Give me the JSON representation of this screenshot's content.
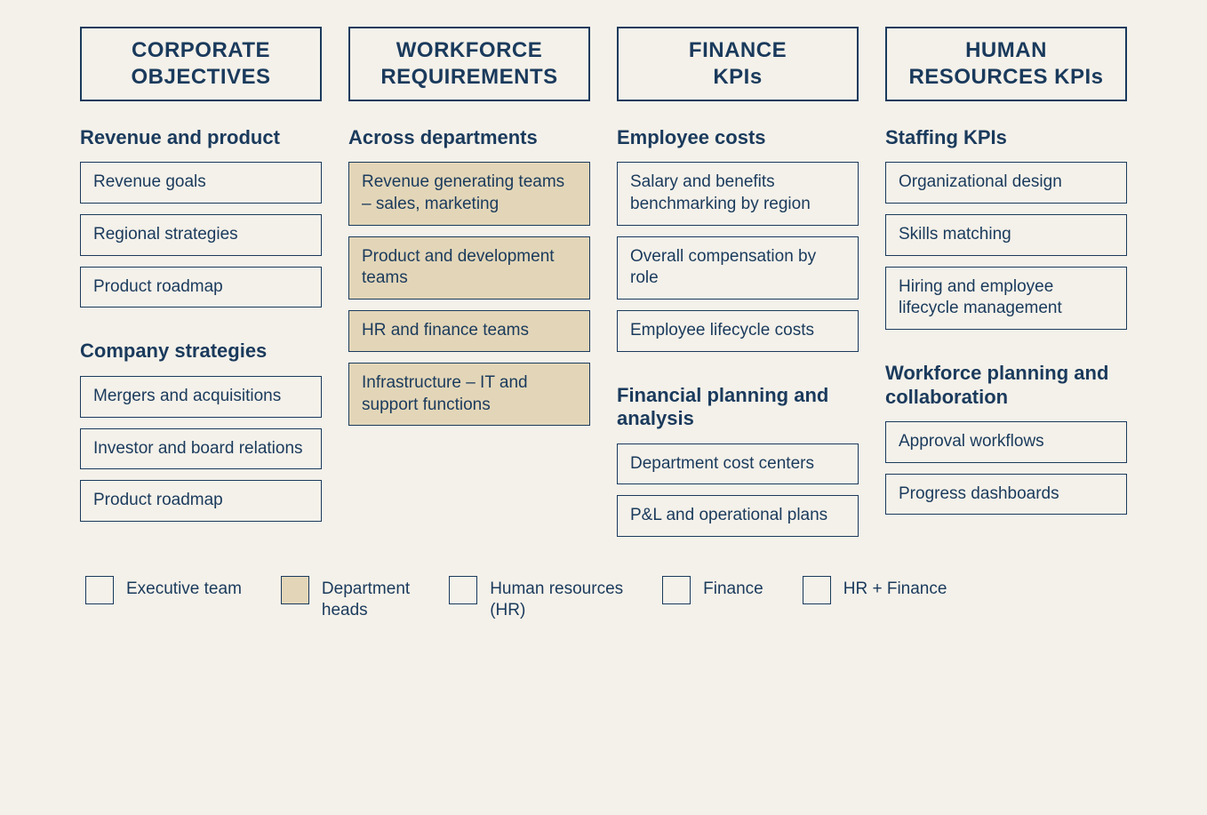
{
  "colors": {
    "background": "#f4f1ea",
    "text": "#1a3a5c",
    "border": "#1a3a5c",
    "fill_highlight": "#e3d6b8"
  },
  "columns": [
    {
      "header": "CORPORATE\nOBJECTIVES",
      "sections": [
        {
          "title": "Revenue and product",
          "items": [
            {
              "label": "Revenue goals",
              "filled": false
            },
            {
              "label": "Regional strategies",
              "filled": false
            },
            {
              "label": "Product roadmap",
              "filled": false
            }
          ]
        },
        {
          "title": "Company strategies",
          "items": [
            {
              "label": "Mergers and acquisitions",
              "filled": false
            },
            {
              "label": "Investor and board relations",
              "filled": false
            },
            {
              "label": "Product roadmap",
              "filled": false
            }
          ]
        }
      ]
    },
    {
      "header": "WORKFORCE\nREQUIREMENTS",
      "sections": [
        {
          "title": "Across departments",
          "items": [
            {
              "label": "Revenue generating teams – sales, marketing",
              "filled": true
            },
            {
              "label": "Product and development teams",
              "filled": true
            },
            {
              "label": "HR and finance teams",
              "filled": true
            },
            {
              "label": "Infrastructure – IT and support functions",
              "filled": true
            }
          ]
        }
      ]
    },
    {
      "header": "FINANCE\nKPIs",
      "sections": [
        {
          "title": "Employee costs",
          "items": [
            {
              "label": "Salary and benefits benchmarking by region",
              "filled": false
            },
            {
              "label": "Overall compensation by role",
              "filled": false
            },
            {
              "label": "Employee lifecycle costs",
              "filled": false
            }
          ]
        },
        {
          "title": "Financial planning and analysis",
          "items": [
            {
              "label": "Department cost centers",
              "filled": false
            },
            {
              "label": "P&L and operational plans",
              "filled": false
            }
          ]
        }
      ]
    },
    {
      "header": "HUMAN\nRESOURCES KPIs",
      "sections": [
        {
          "title": "Staffing KPIs",
          "items": [
            {
              "label": "Organizational design",
              "filled": false
            },
            {
              "label": "Skills matching",
              "filled": false
            },
            {
              "label": "Hiring and employee lifecycle management",
              "filled": false
            }
          ]
        },
        {
          "title": "Workforce planning and collaboration",
          "items": [
            {
              "label": "Approval workflows",
              "filled": false
            },
            {
              "label": "Progress dashboards",
              "filled": false
            }
          ]
        }
      ]
    }
  ],
  "legend": [
    {
      "label": "Executive team",
      "filled": false
    },
    {
      "label": "Department\nheads",
      "filled": true
    },
    {
      "label": "Human resources\n(HR)",
      "filled": false
    },
    {
      "label": "Finance",
      "filled": false
    },
    {
      "label": "HR + Finance",
      "filled": false
    }
  ]
}
